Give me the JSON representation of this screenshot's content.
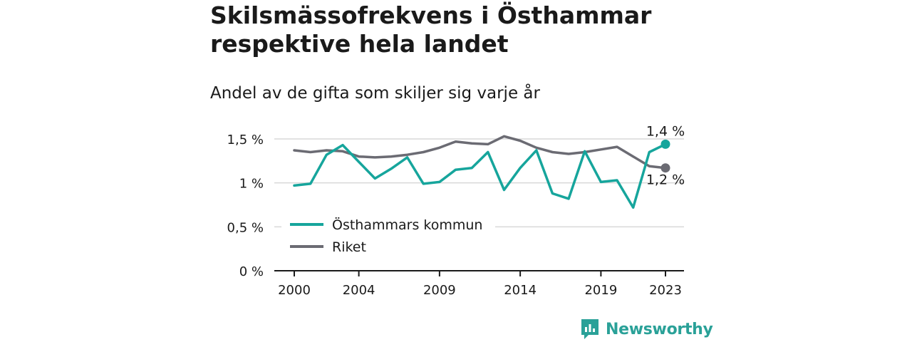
{
  "title_lines": [
    "Skilsmässofrekvens i Östhammar",
    "respektive hela landet"
  ],
  "subtitle": "Andel av de gifta som skiljer sig varje år",
  "brand": "Newsworthy",
  "colors": {
    "osthammar": "#16a59c",
    "riket": "#6b6b73",
    "grid": "#d9d9d9",
    "axis": "#1a1a1a"
  },
  "chart_data": {
    "type": "line",
    "x": [
      2000,
      2001,
      2002,
      2003,
      2004,
      2005,
      2006,
      2007,
      2008,
      2009,
      2010,
      2011,
      2012,
      2013,
      2014,
      2015,
      2016,
      2017,
      2018,
      2019,
      2020,
      2021,
      2022,
      2023
    ],
    "series": [
      {
        "name": "Östhammars kommun",
        "values": [
          0.97,
          0.99,
          1.32,
          1.43,
          1.24,
          1.05,
          1.16,
          1.29,
          0.99,
          1.01,
          1.15,
          1.17,
          1.35,
          0.92,
          1.17,
          1.37,
          0.88,
          0.82,
          1.36,
          1.01,
          1.03,
          0.72,
          1.35,
          1.44
        ],
        "end_label": "1,4 %"
      },
      {
        "name": "Riket",
        "values": [
          1.37,
          1.35,
          1.37,
          1.36,
          1.3,
          1.29,
          1.3,
          1.32,
          1.35,
          1.4,
          1.47,
          1.45,
          1.44,
          1.53,
          1.48,
          1.4,
          1.35,
          1.33,
          1.35,
          1.38,
          1.41,
          1.3,
          1.19,
          1.17
        ],
        "end_label": "1,2 %"
      }
    ],
    "y_ticks": [
      {
        "value": 0,
        "label": "0 %"
      },
      {
        "value": 0.5,
        "label": "0,5 %"
      },
      {
        "value": 1,
        "label": "1 %"
      },
      {
        "value": 1.5,
        "label": "1,5 %"
      }
    ],
    "x_ticks": [
      2000,
      2004,
      2009,
      2014,
      2019,
      2023
    ],
    "ylim": [
      0,
      1.5
    ],
    "xlim": [
      2000,
      2023
    ],
    "grid": true,
    "legend_position": "bottom-left"
  }
}
